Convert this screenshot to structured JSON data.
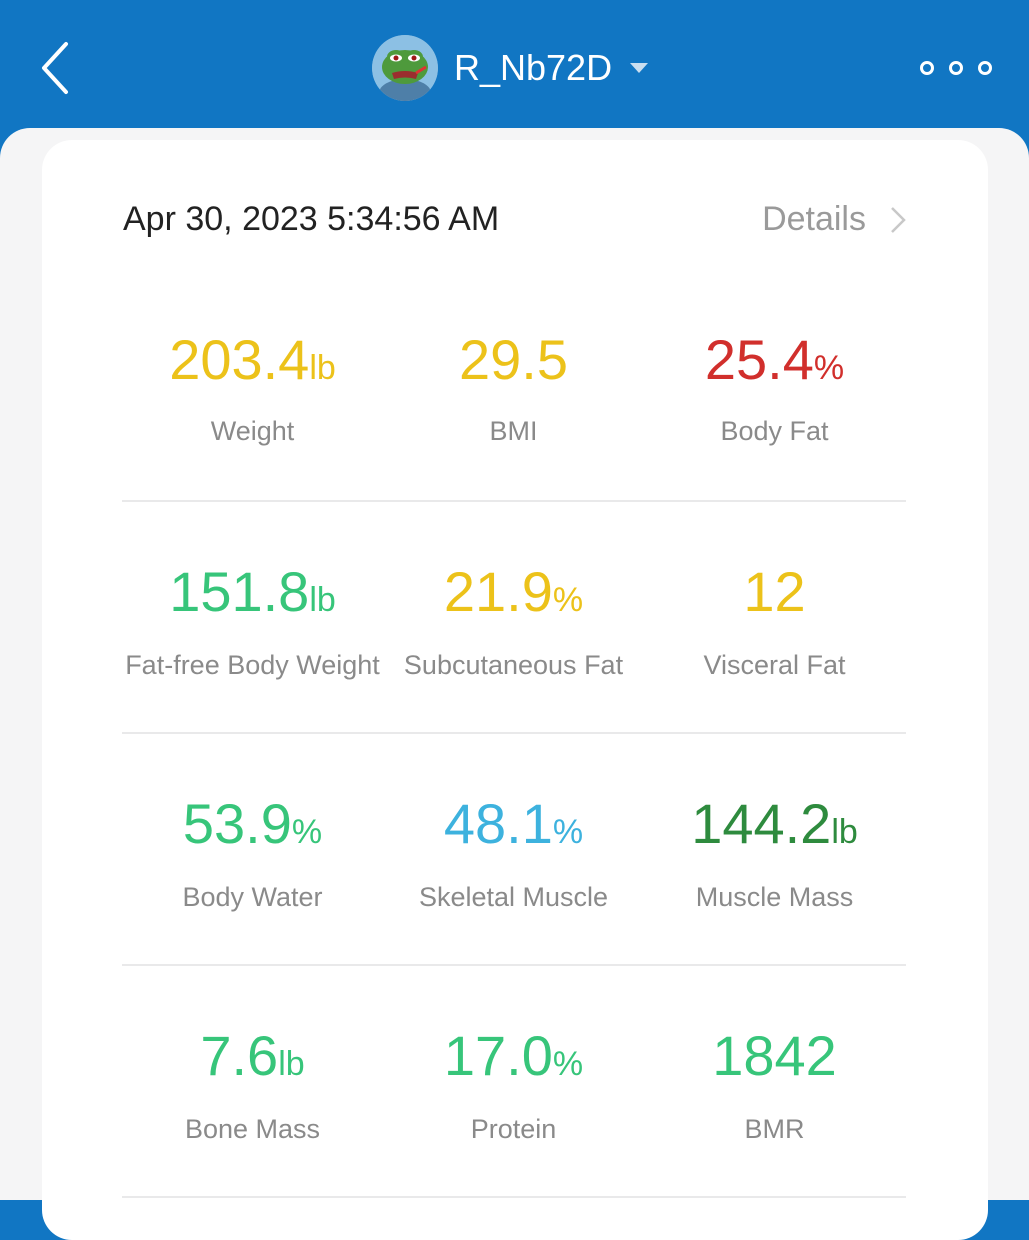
{
  "header": {
    "username": "R_Nb72D",
    "icons": {
      "back": "back-chevron-icon",
      "dropdown": "caret-down-icon",
      "more": "more-options-icon"
    }
  },
  "record": {
    "timestamp": "Apr 30, 2023 5:34:56 AM",
    "details_label": "Details"
  },
  "metrics": [
    [
      {
        "value": "203.4",
        "unit": "lb",
        "label": "Weight",
        "color": "#ecc21a"
      },
      {
        "value": "29.5",
        "unit": "",
        "label": "BMI",
        "color": "#ecc21a"
      },
      {
        "value": "25.4",
        "unit": "%",
        "label": "Body Fat",
        "color": "#d12f2c"
      }
    ],
    [
      {
        "value": "151.8",
        "unit": "lb",
        "label": "Fat-free Body Weight",
        "color": "#37c57a"
      },
      {
        "value": "21.9",
        "unit": "%",
        "label": "Subcutaneous Fat",
        "color": "#ecc21a"
      },
      {
        "value": "12",
        "unit": "",
        "label": "Visceral Fat",
        "color": "#ecc21a"
      }
    ],
    [
      {
        "value": "53.9",
        "unit": "%",
        "label": "Body Water",
        "color": "#37c57a"
      },
      {
        "value": "48.1",
        "unit": "%",
        "label": "Skeletal Muscle",
        "color": "#3db2de"
      },
      {
        "value": "144.2",
        "unit": "lb",
        "label": "Muscle Mass",
        "color": "#2e8b3e"
      }
    ],
    [
      {
        "value": "7.6",
        "unit": "lb",
        "label": "Bone Mass",
        "color": "#37c57a"
      },
      {
        "value": "17.0",
        "unit": "%",
        "label": "Protein",
        "color": "#37c57a"
      },
      {
        "value": "1842",
        "unit": "",
        "label": "BMR",
        "color": "#37c57a"
      }
    ]
  ]
}
